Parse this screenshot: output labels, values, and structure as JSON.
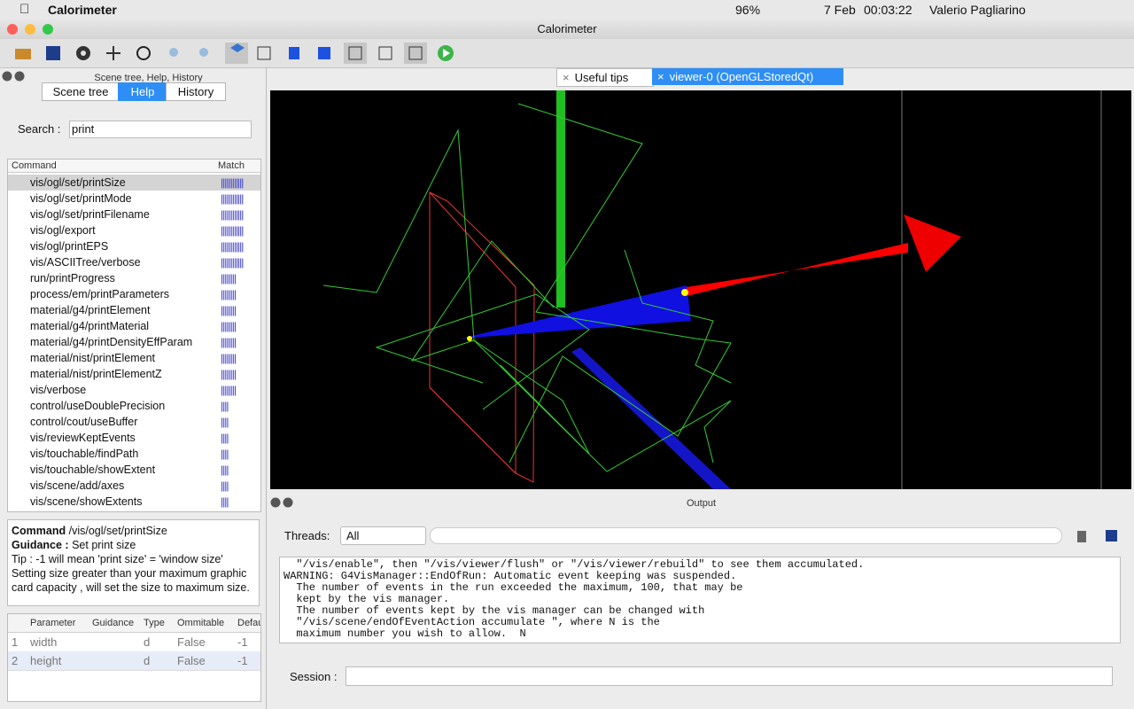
{
  "menubar": {
    "app": "Calorimeter",
    "battery": "96%",
    "date": "7 Feb",
    "time": "00:03:22",
    "user": "Valerio Pagliarino"
  },
  "window": {
    "title": "Calorimeter"
  },
  "left_panel": {
    "title": "Scene tree, Help, History",
    "tabs": [
      "Scene tree",
      "Help",
      "History"
    ],
    "search_label": "Search :",
    "search_value": "print",
    "columns": [
      "Command",
      "Match"
    ],
    "commands": [
      {
        "name": "vis/ogl/set/printSize",
        "match": "||||||||||||"
      },
      {
        "name": "vis/ogl/set/printMode",
        "match": "||||||||||||"
      },
      {
        "name": "vis/ogl/set/printFilename",
        "match": "||||||||||||"
      },
      {
        "name": "vis/ogl/export",
        "match": "||||||||||||"
      },
      {
        "name": "vis/ogl/printEPS",
        "match": "||||||||||||"
      },
      {
        "name": "vis/ASCIITree/verbose",
        "match": "||||||||||||"
      },
      {
        "name": "run/printProgress",
        "match": "||||||||"
      },
      {
        "name": "process/em/printParameters",
        "match": "||||||||"
      },
      {
        "name": "material/g4/printElement",
        "match": "||||||||"
      },
      {
        "name": "material/g4/printMaterial",
        "match": "||||||||"
      },
      {
        "name": "material/g4/printDensityEffParam",
        "match": "||||||||"
      },
      {
        "name": "material/nist/printElement",
        "match": "||||||||"
      },
      {
        "name": "material/nist/printElementZ",
        "match": "||||||||"
      },
      {
        "name": "vis/verbose",
        "match": "||||||||"
      },
      {
        "name": "control/useDoublePrecision",
        "match": "||||"
      },
      {
        "name": "control/cout/useBuffer",
        "match": "||||"
      },
      {
        "name": "vis/reviewKeptEvents",
        "match": "||||"
      },
      {
        "name": "vis/touchable/findPath",
        "match": "||||"
      },
      {
        "name": "vis/touchable/showExtent",
        "match": "||||"
      },
      {
        "name": "vis/scene/add/axes",
        "match": "||||"
      },
      {
        "name": "vis/scene/showExtents",
        "match": "||||"
      }
    ],
    "guidance": {
      "command_label": "Command",
      "command": "/vis/ogl/set/printSize",
      "guidance_label": "Guidance :",
      "guidance": "Set print size",
      "text": "Tip : -1 will mean 'print size' = 'window size' Setting size greater than your maximum graphic card capacity , will set the size to maximum size."
    },
    "param_table": {
      "headers": [
        "Parameter",
        "Guidance",
        "Type",
        "Ommitable",
        "Defau"
      ],
      "rows": [
        {
          "index": "1",
          "parameter": "width",
          "type": "d",
          "ommitable": "False",
          "default": "-1"
        },
        {
          "index": "2",
          "parameter": "height",
          "type": "d",
          "ommitable": "False",
          "default": "-1"
        }
      ]
    }
  },
  "viewer": {
    "tabs": [
      "Useful tips",
      "viewer-0 (OpenGLStoredQt)"
    ]
  },
  "output": {
    "title": "Output",
    "threads_label": "Threads:",
    "threads_value": "All",
    "lines": [
      "  \"/vis/enable\", then \"/vis/viewer/flush\" or \"/vis/viewer/rebuild\" to see them accumulated.",
      "WARNING: G4VisManager::EndOfRun: Automatic event keeping was suspended.",
      "  The number of events in the run exceeded the maximum, 100, that may be",
      "  kept by the vis manager.",
      "  The number of events kept by the vis manager can be changed with",
      "  \"/vis/scene/endOfEventAction accumulate \", where N is the",
      "  maximum number you wish to allow.  N"
    ],
    "session_label": "Session :"
  }
}
